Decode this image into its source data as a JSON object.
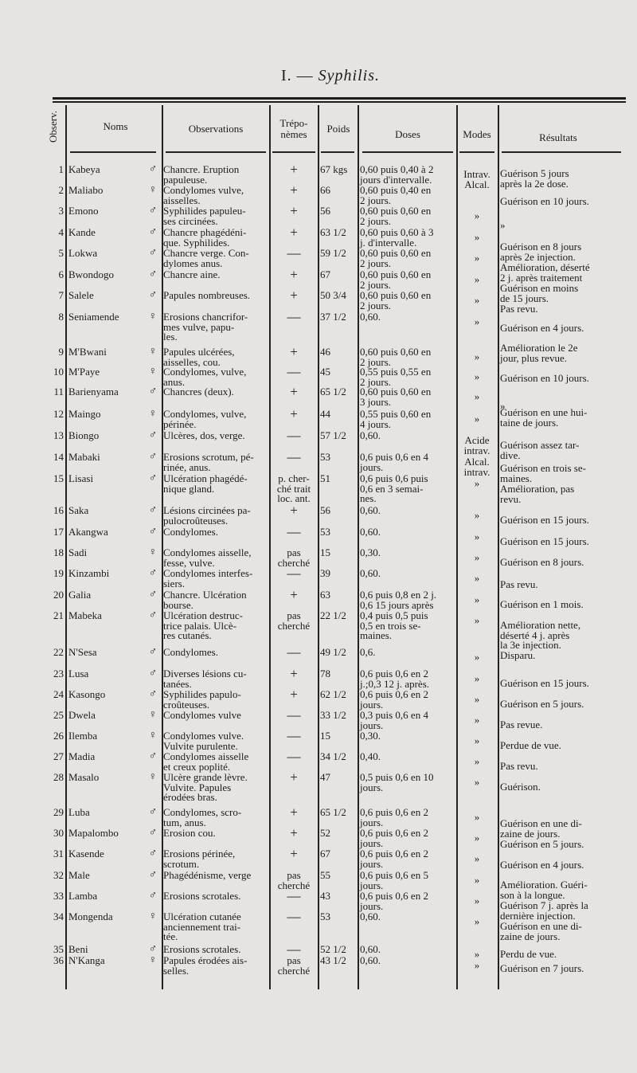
{
  "title": {
    "number": "I. —",
    "subject": "Syphilis."
  },
  "headers": {
    "observ": "Observ.",
    "noms": "Noms",
    "observations": "Observations",
    "treponemes": "Trépo-\nnèmes",
    "poids": "Poids",
    "doses": "Doses",
    "modes": "Modes",
    "resultats": "Résultats"
  },
  "rows": [
    {
      "num": "1",
      "name": "Kabeya",
      "sex": "♂",
      "obs": "Chancre. Eruption\npapuleuse.",
      "trep": "+",
      "poids": "67 kgs",
      "doses": "0,60 puis 0,40 à 2\njours d'intervalle.",
      "modes": "Intrav.\nAlcal.",
      "res": "Guérison 5 jours\naprès la 2e dose."
    },
    {
      "num": "2",
      "name": "Maliabo",
      "sex": "♀",
      "obs": "Condylomes vulve,\naisselles.",
      "trep": "+",
      "poids": "66",
      "doses": "0,60 puis 0,40 en\n2 jours.",
      "modes": "",
      "res": "Guérison en 10 jours."
    },
    {
      "num": "3",
      "name": "Emono",
      "sex": "♂",
      "obs": "Syphilides papuleu-\nses circinées.",
      "trep": "+",
      "poids": "56",
      "doses": "0,60 puis 0,60 en\n2 jours.",
      "modes": "»",
      "res": "»"
    },
    {
      "num": "4",
      "name": "Kande",
      "sex": "♂",
      "obs": "Chancre phagédéni-\nque. Syphilides.",
      "trep": "+",
      "poids": "63 1/2",
      "doses": "0,60 puis 0,60 à 3\nj. d'intervalle.",
      "modes": "»",
      "res": "Guérison en 8 jours\naprès 2e injection."
    },
    {
      "num": "5",
      "name": "Lokwa",
      "sex": "♂",
      "obs": "Chancre verge. Con-\ndylomes anus.",
      "trep": "—",
      "poids": "59 1/2",
      "doses": "0,60 puis 0,60 en\n2 jours.",
      "modes": "»",
      "res": "Amélioration, déserté\n2 j. après traitement"
    },
    {
      "num": "6",
      "name": "Bwondogo",
      "sex": "♂",
      "obs": "Chancre aine.",
      "trep": "+",
      "poids": "67",
      "doses": "0,60 puis 0,60 en\n2 jours.",
      "modes": "»",
      "res": "Guérison en moins\nde 15 jours."
    },
    {
      "num": "7",
      "name": "Salele",
      "sex": "♂",
      "obs": "Papules nombreuses.",
      "trep": "+",
      "poids": "50 3/4",
      "doses": "0,60 puis 0,60 en\n2 jours.",
      "modes": "»",
      "res": "Pas revu."
    },
    {
      "num": "8",
      "name": "Seniamende",
      "sex": "♀",
      "obs": "Erosions chancrifor-\nmes vulve, papu-\nles.",
      "trep": "—",
      "poids": "37 1/2",
      "doses": "0,60.",
      "modes": "»",
      "res": "Guérison en 4 jours."
    },
    {
      "num": "9",
      "name": "M'Bwani",
      "sex": "♀",
      "obs": "Papules ulcérées,\naisselles, cou.",
      "trep": "+",
      "poids": "46",
      "doses": "0,60 puis 0,60 en\n2 jours.",
      "modes": "»",
      "res": "Amélioration le 2e\njour, plus revue."
    },
    {
      "num": "10",
      "name": "M'Paye",
      "sex": "♀",
      "obs": "Condylomes, vulve,\nanus.",
      "trep": "—",
      "poids": "45",
      "doses": "0,55 puis 0,55 en\n2 jours.",
      "modes": "»",
      "res": "Guérison en 10 jours."
    },
    {
      "num": "11",
      "name": "Barienyama",
      "sex": "♂",
      "obs": "Chancres (deux).",
      "trep": "+",
      "poids": "65 1/2",
      "doses": "0,60 puis 0,60 en\n3 jours.",
      "modes": "»",
      "res": "»"
    },
    {
      "num": "12",
      "name": "Maingo",
      "sex": "♀",
      "obs": "Condylomes, vulve,\npérinée.",
      "trep": "+",
      "poids": "44",
      "doses": "0,55 puis 0,60 en\n4 jours.",
      "modes": "»",
      "res": "Guérison en une hui-\ntaine de jours."
    },
    {
      "num": "13",
      "name": "Biongo",
      "sex": "♂",
      "obs": "Ulcères, dos, verge.",
      "trep": "—",
      "poids": "57 1/2",
      "doses": "0,60.",
      "modes": "Acide\nintrav.",
      "res": "Guérison assez tar-\ndive."
    },
    {
      "num": "14",
      "name": "Mabaki",
      "sex": "♂",
      "obs": "Erosions scrotum, pé-\nrinée, anus.",
      "trep": "—",
      "poids": "53",
      "doses": "0,6 puis 0,6 en 4\njours.",
      "modes": "Alcal.\nintrav.",
      "res": "Guérison en trois se-\nmaines."
    },
    {
      "num": "15",
      "name": "Lisasi",
      "sex": "♂",
      "obs": "Ulcération phagédé-\nnique gland.",
      "trep": "p. cher-\nché trait\nloc. ant.",
      "poids": "51",
      "doses": "0,6 puis 0,6 puis\n0,6 en 3 semai-\nnes.",
      "modes": "»",
      "res": "Amélioration, pas\nrevu."
    },
    {
      "num": "16",
      "name": "Saka",
      "sex": "♂",
      "obs": "Lésions circinées pa-\npulocroûteuses.",
      "trep": "+",
      "poids": "56",
      "doses": "0,60.",
      "modes": "»",
      "res": "Guérison en 15 jours."
    },
    {
      "num": "17",
      "name": "Akangwa",
      "sex": "♂",
      "obs": "Condylomes.",
      "trep": "—",
      "poids": "53",
      "doses": "0,60.",
      "modes": "»",
      "res": "Guérison en 15 jours."
    },
    {
      "num": "18",
      "name": "Sadi",
      "sex": "♀",
      "obs": "Condylomes aisselle,\nfesse, vulve.",
      "trep": "pas\ncherché",
      "poids": "15",
      "doses": "0,30.",
      "modes": "»",
      "res": "Guérison en 8 jours."
    },
    {
      "num": "19",
      "name": "Kinzambi",
      "sex": "♂",
      "obs": "Condylomes interfes-\nsiers.",
      "trep": "—",
      "poids": "39",
      "doses": "0,60.",
      "modes": "»",
      "res": "Pas revu."
    },
    {
      "num": "20",
      "name": "Galia",
      "sex": "♂",
      "obs": "Chancre. Ulcération\nbourse.",
      "trep": "+",
      "poids": "63",
      "doses": "0,6 puis 0,8 en 2 j.\n0,6 15 jours après",
      "modes": "»",
      "res": "Guérison en 1 mois."
    },
    {
      "num": "21",
      "name": "Mabeka",
      "sex": "♂",
      "obs": "Ulcération destruc-\ntrice palais. Ulcè-\nres cutanés.",
      "trep": "pas\ncherché",
      "poids": "22 1/2",
      "doses": "0,4 puis 0,5 puis\n0,5 en trois se-\nmaines.",
      "modes": "»",
      "res": "Amélioration nette,\ndéserté 4 j. après\nla 3e injection."
    },
    {
      "num": "22",
      "name": "N'Sesa",
      "sex": "♂",
      "obs": "Condylomes.",
      "trep": "—",
      "poids": "49 1/2",
      "doses": "0,6.",
      "modes": "»",
      "res": "Disparu."
    },
    {
      "num": "23",
      "name": "Lusa",
      "sex": "♂",
      "obs": "Diverses lésions cu-\ntanées.",
      "trep": "+",
      "poids": "78",
      "doses": "0,6 puis 0,6 en 2\nj.;0,3 12 j. après.",
      "modes": "»",
      "res": "Guérison en 15 jours."
    },
    {
      "num": "24",
      "name": "Kasongo",
      "sex": "♂",
      "obs": "Syphilides papulo-\ncroûteuses.",
      "trep": "+",
      "poids": "62 1/2",
      "doses": "0,6 puis 0,6 en 2\njours.",
      "modes": "»",
      "res": "Guérison en 5 jours."
    },
    {
      "num": "25",
      "name": "Dwela",
      "sex": "♀",
      "obs": "Condylomes vulve",
      "trep": "—",
      "poids": "33 1/2",
      "doses": "0,3 puis 0,6 en 4\njours.",
      "modes": "»",
      "res": "Pas revue."
    },
    {
      "num": "26",
      "name": "Ilemba",
      "sex": "♀",
      "obs": "Condylomes vulve.\nVulvite purulente.",
      "trep": "—",
      "poids": "15",
      "doses": "0,30.",
      "modes": "»",
      "res": "Perdue de vue."
    },
    {
      "num": "27",
      "name": "Madia",
      "sex": "♂",
      "obs": "Condylomes aisselle\net creux poplité.",
      "trep": "—",
      "poids": "34 1/2",
      "doses": "0,40.",
      "modes": "»",
      "res": "Pas revu."
    },
    {
      "num": "28",
      "name": "Masalo",
      "sex": "♀",
      "obs": "Ulcère grande lèvre.\nVulvite. Papules\nérodées bras.",
      "trep": "+",
      "poids": "47",
      "doses": "0,5 puis 0,6 en 10\njours.",
      "modes": "»",
      "res": "Guérison."
    },
    {
      "num": "29",
      "name": "Luba",
      "sex": "♂",
      "obs": "Condylomes, scro-\ntum, anus.",
      "trep": "+",
      "poids": "65 1/2",
      "doses": "0,6 puis 0,6 en 2\njours.",
      "modes": "»",
      "res": "Guérison en une di-\nzaine de jours."
    },
    {
      "num": "30",
      "name": "Mapalombo",
      "sex": "♂",
      "obs": "Erosion cou.",
      "trep": "+",
      "poids": "52",
      "doses": "0,6 puis 0,6 en 2\njours.",
      "modes": "»",
      "res": "Guérison en 5 jours."
    },
    {
      "num": "31",
      "name": "Kasende",
      "sex": "♂",
      "obs": "Erosions périnée,\nscrotum.",
      "trep": "+",
      "poids": "67",
      "doses": "0,6 puis 0,6 en 2\njours.",
      "modes": "»",
      "res": "Guérison en 4 jours."
    },
    {
      "num": "32",
      "name": "Male",
      "sex": "♂",
      "obs": "Phagédénisme, verge",
      "trep": "pas\ncherché",
      "poids": "55",
      "doses": "0,6 puis 0,6 en 5\njours.",
      "modes": "»",
      "res": "Amélioration. Guéri-\nson à la longue."
    },
    {
      "num": "33",
      "name": "Lamba",
      "sex": "♂",
      "obs": "Erosions scrotales.",
      "trep": "—",
      "poids": "43",
      "doses": "0,6 puis 0,6 en 2\njours.",
      "modes": "»",
      "res": "Guérison 7 j. après la\ndernière injection."
    },
    {
      "num": "34",
      "name": "Mongenda",
      "sex": "♀",
      "obs": "Ulcération cutanée\nanciennement trai-\ntée.",
      "trep": "—",
      "poids": "53",
      "doses": "0,60.",
      "modes": "»",
      "res": "Guérison en une di-\nzaine de jours."
    },
    {
      "num": "35",
      "name": "Beni",
      "sex": "♂",
      "obs": "Erosions scrotales.",
      "trep": "—",
      "poids": "52 1/2",
      "doses": "0,60.",
      "modes": "»",
      "res": "Perdu de vue."
    },
    {
      "num": "36",
      "name": "N'Kanga",
      "sex": "♀",
      "obs": "Papules érodées ais-\nselles.",
      "trep": "pas\ncherché",
      "poids": "43 1/2",
      "doses": "0,60.",
      "modes": "»",
      "res": "Guérison en 7 jours."
    }
  ]
}
